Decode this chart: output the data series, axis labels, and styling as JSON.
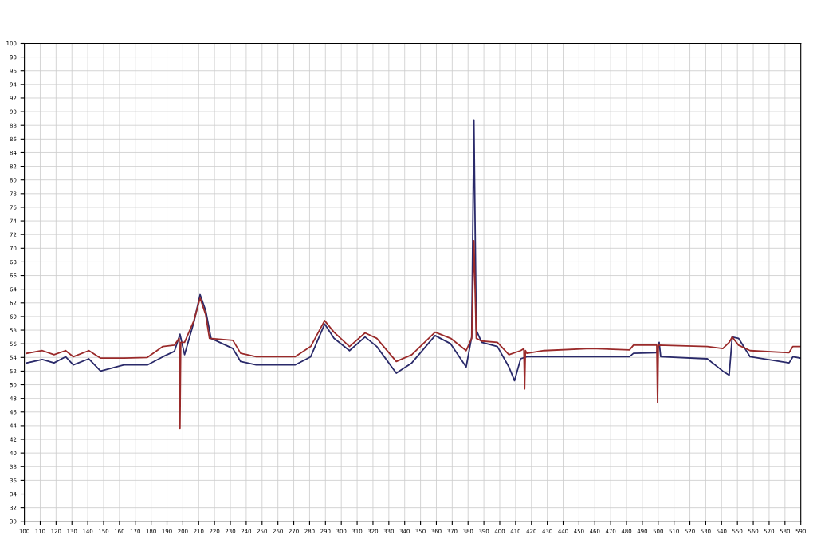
{
  "chart_data": {
    "type": "line",
    "xlim": [
      100,
      590
    ],
    "xticks": [
      100,
      110,
      120,
      130,
      140,
      150,
      160,
      170,
      180,
      190,
      200,
      210,
      220,
      230,
      240,
      250,
      260,
      270,
      280,
      290,
      300,
      310,
      320,
      330,
      340,
      350,
      360,
      370,
      380,
      390,
      400,
      410,
      420,
      430,
      440,
      450,
      460,
      470,
      480,
      490,
      500,
      510,
      520,
      530,
      540,
      550,
      560,
      570,
      580,
      590
    ],
    "ylim": [
      30,
      100
    ],
    "yticks": [
      30,
      32,
      34,
      36,
      38,
      40,
      42,
      44,
      46,
      48,
      50,
      52,
      54,
      56,
      58,
      60,
      62,
      64,
      66,
      68,
      70,
      72,
      74,
      76,
      78,
      80,
      82,
      84,
      86,
      88,
      90,
      92,
      94,
      96,
      98,
      100
    ],
    "grid": true,
    "marker": "none",
    "line_style": "solid",
    "series": [
      {
        "color": "#2a2a6a",
        "x": [
          101.5,
          111.3,
          118.7,
          126,
          130.9,
          140.7,
          148.1,
          162.8,
          177.6,
          187.4,
          194.7,
          198.2,
          201.1,
          207,
          210.9,
          214.4,
          217.8,
          231.6,
          236.5,
          246.3,
          270.8,
          280.7,
          289.5,
          295.4,
          305.2,
          315,
          322.4,
          334.7,
          344.5,
          359.2,
          369,
          378.8,
          382.3,
          383.7,
          385.2,
          388.6,
          398.5,
          405.8,
          409.3,
          413.2,
          417.1,
          427.9,
          457.4,
          481.9,
          484.4,
          499.1,
          500.6,
          501.6,
          531,
          540.8,
          544.8,
          546.7,
          550.7,
          558,
          582.6,
          585,
          589.9
        ],
        "values": [
          53.2,
          53.7,
          53.2,
          54.1,
          52.9,
          53.8,
          52,
          52.9,
          52.9,
          54.1,
          54.9,
          57.4,
          54.4,
          59.2,
          63.2,
          60.9,
          56.8,
          55.3,
          53.4,
          52.9,
          52.9,
          54.1,
          58.9,
          56.8,
          55,
          57,
          55.6,
          51.7,
          53.2,
          57.2,
          56,
          52.6,
          57,
          88.8,
          58,
          56.2,
          55.6,
          52.6,
          50.6,
          53.8,
          54.1,
          54.1,
          54.1,
          54.1,
          54.6,
          54.7,
          56.2,
          54.1,
          53.8,
          52,
          51.4,
          57,
          56.8,
          54.1,
          53.2,
          54.1,
          53.9
        ]
      },
      {
        "color": "#9a2a2a",
        "x": [
          101.5,
          111.3,
          118.7,
          126,
          130.9,
          140.7,
          148.1,
          162.8,
          177.6,
          187.4,
          194.7,
          197.7,
          198.2,
          198.7,
          201.1,
          207,
          210.9,
          214.4,
          216.8,
          231.6,
          236.5,
          246.3,
          270.8,
          280.7,
          289.5,
          295.4,
          305.2,
          315,
          322.4,
          334.7,
          344.5,
          359.2,
          369,
          378.8,
          382.3,
          383.7,
          385.2,
          388.6,
          398.5,
          405.8,
          413.2,
          415.2,
          415.7,
          416.2,
          417.1,
          427.9,
          457.4,
          481.9,
          484.4,
          499.1,
          499.6,
          500.1,
          531,
          540.8,
          544.8,
          546.7,
          550.7,
          558,
          582.6,
          585,
          589.9
        ],
        "values": [
          54.6,
          55,
          54.4,
          55,
          54.1,
          55,
          53.9,
          53.9,
          54,
          55.6,
          55.8,
          56.8,
          43.6,
          56.2,
          56.2,
          59.4,
          62.7,
          60.3,
          56.8,
          56.5,
          54.6,
          54.1,
          54.1,
          55.6,
          59.4,
          57.7,
          55.6,
          57.6,
          56.8,
          53.4,
          54.4,
          57.7,
          56.8,
          55,
          56.8,
          71.1,
          56.8,
          56.4,
          56.2,
          54.4,
          55,
          55.3,
          49.4,
          55,
          54.6,
          55,
          55.3,
          55.1,
          55.8,
          55.8,
          47.4,
          55.8,
          55.6,
          55.3,
          56.2,
          57,
          55.8,
          55,
          54.7,
          55.6,
          55.6
        ]
      }
    ]
  }
}
